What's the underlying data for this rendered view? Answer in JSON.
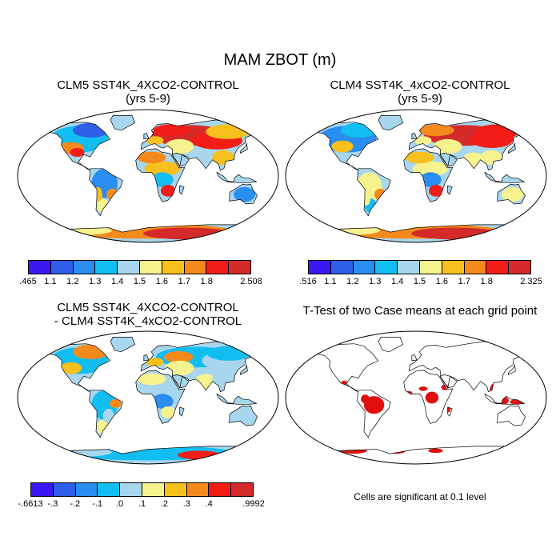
{
  "title": "MAM ZBOT (m)",
  "panels": [
    {
      "title_line1": "CLM5 SST4K_4XCO2-CONTROL",
      "title_line2": "(yrs 5-9)"
    },
    {
      "title_line1": "CLM4 SST4K_4xCO2-CONTROL",
      "title_line2": "(yrs 5-9)"
    },
    {
      "title_line1": "CLM5 SST4K_4XCO2-CONTROL",
      "title_line2": "- CLM4 SST4K_4xCO2-CONTROL"
    },
    {
      "title_line1": "T-Test of two Case means at each grid point"
    }
  ],
  "colorbars": [
    {
      "colors": [
        "#3a18f2",
        "#2f5ee8",
        "#2a8df0",
        "#12bdf2",
        "#a8d6ee",
        "#f6f28e",
        "#f8c01d",
        "#f58a1c",
        "#f21d16",
        "#d42a2a"
      ],
      "labels": [
        ".465",
        "1.1",
        "1.2",
        "1.3",
        "1.4",
        "1.5",
        "1.6",
        "1.7",
        "1.8",
        "2.508"
      ]
    },
    {
      "colors": [
        "#3a18f2",
        "#2f5ee8",
        "#2a8df0",
        "#12bdf2",
        "#a8d6ee",
        "#f6f28e",
        "#f8c01d",
        "#f58a1c",
        "#f21d16",
        "#d42a2a"
      ],
      "labels": [
        ".516",
        "1.1",
        "1.2",
        "1.3",
        "1.4",
        "1.5",
        "1.6",
        "1.7",
        "1.8",
        "2.325"
      ]
    },
    {
      "colors": [
        "#3a18f2",
        "#2f5ee8",
        "#2a8df0",
        "#12bdf2",
        "#a8d6ee",
        "#f6f28e",
        "#f8c01d",
        "#f58a1c",
        "#f21d16",
        "#d42a2a"
      ],
      "labels": [
        "-.6613",
        "-.3",
        "-.2",
        "-.1",
        ".0",
        ".1",
        ".2",
        ".3",
        ".4",
        ".9992"
      ]
    }
  ],
  "significance_note": "Cells are significant at 0.1 level",
  "significance_color": "#e01010"
}
